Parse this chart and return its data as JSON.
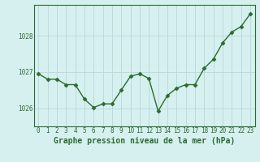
{
  "x": [
    0,
    1,
    2,
    3,
    4,
    5,
    6,
    7,
    8,
    9,
    10,
    11,
    12,
    13,
    14,
    15,
    16,
    17,
    18,
    19,
    20,
    21,
    22,
    23
  ],
  "y": [
    1026.95,
    1026.8,
    1026.8,
    1026.65,
    1026.65,
    1026.25,
    1026.02,
    1026.12,
    1026.12,
    1026.5,
    1026.88,
    1026.95,
    1026.82,
    1025.92,
    1026.35,
    1026.55,
    1026.65,
    1026.65,
    1027.1,
    1027.35,
    1027.8,
    1028.1,
    1028.25,
    1028.6
  ],
  "line_color": "#2d6a2d",
  "marker": "D",
  "markersize": 2.5,
  "linewidth": 1.0,
  "bg_color": "#d6f0f0",
  "grid_color": "#b8d8d8",
  "xlabel": "Graphe pression niveau de la mer (hPa)",
  "xlabel_fontsize": 7.0,
  "tick_fontsize": 5.5,
  "yticks": [
    1026,
    1027,
    1028
  ],
  "ylim": [
    1025.5,
    1028.85
  ],
  "xlim": [
    -0.5,
    23.5
  ],
  "xtick_labels": [
    "0",
    "1",
    "2",
    "3",
    "4",
    "5",
    "6",
    "7",
    "8",
    "9",
    "10",
    "11",
    "12",
    "13",
    "14",
    "15",
    "16",
    "17",
    "18",
    "19",
    "20",
    "21",
    "22",
    "23"
  ]
}
